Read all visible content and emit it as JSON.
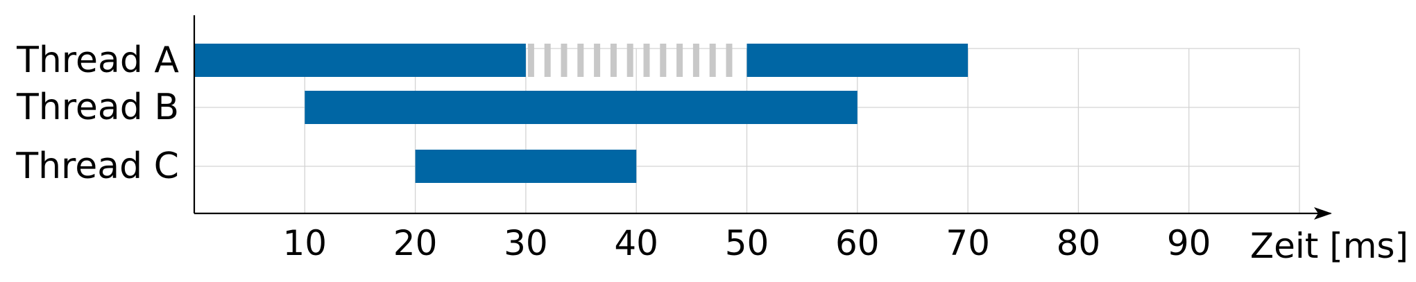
{
  "chart_data": {
    "type": "gantt",
    "title": "",
    "xlabel": "Zeit [ms]",
    "ylabel": "",
    "xlim": [
      0,
      100
    ],
    "x_ticks": [
      10,
      20,
      30,
      40,
      50,
      60,
      70,
      80,
      90
    ],
    "grid": true,
    "threads": [
      {
        "name": "Thread A",
        "intervals": [
          {
            "start": 0,
            "end": 30,
            "state": "running"
          },
          {
            "start": 30,
            "end": 50,
            "state": "waiting"
          },
          {
            "start": 50,
            "end": 70,
            "state": "running"
          }
        ]
      },
      {
        "name": "Thread B",
        "intervals": [
          {
            "start": 10,
            "end": 60,
            "state": "running"
          }
        ]
      },
      {
        "name": "Thread C",
        "intervals": [
          {
            "start": 20,
            "end": 40,
            "state": "running"
          }
        ]
      }
    ],
    "colors": {
      "running": "#0066a4",
      "waiting": "#c8c8c8",
      "grid": "#d3d3d3",
      "axis": "#000000"
    }
  }
}
